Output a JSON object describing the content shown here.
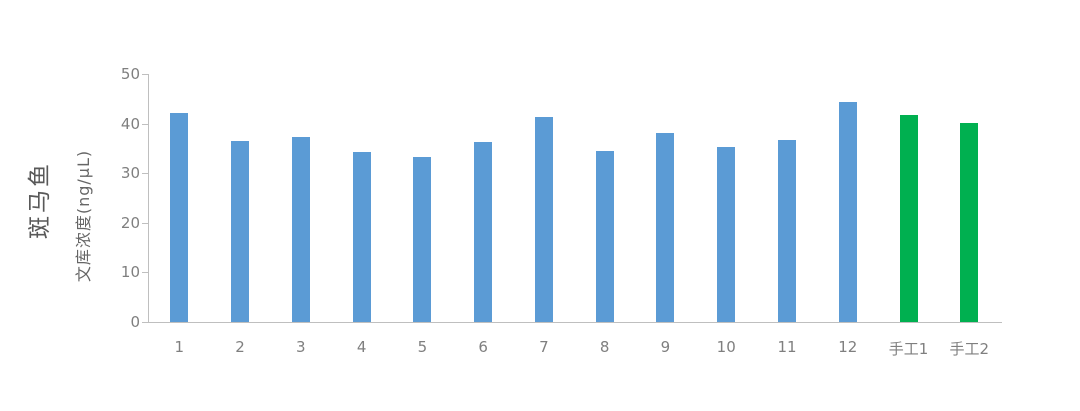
{
  "chart": {
    "row_title": "斑马鱼",
    "ylabel": "文库浓度(ng/μL)"
  },
  "chart_data": {
    "type": "bar",
    "title": "斑马鱼",
    "xlabel": "",
    "ylabel": "文库浓度(ng/μL)",
    "categories": [
      "1",
      "2",
      "3",
      "4",
      "5",
      "6",
      "7",
      "8",
      "9",
      "10",
      "11",
      "12",
      "手工1",
      "手工2"
    ],
    "values": [
      42.2,
      36.5,
      37.2,
      34.2,
      33.3,
      36.3,
      41.3,
      34.5,
      38.2,
      35.3,
      36.6,
      44.3,
      41.8,
      40.2
    ],
    "groups": [
      "sample",
      "sample",
      "sample",
      "sample",
      "sample",
      "sample",
      "sample",
      "sample",
      "sample",
      "sample",
      "sample",
      "sample",
      "manual",
      "manual"
    ],
    "group_colors": {
      "sample": "#5b9bd5",
      "manual": "#00b050"
    },
    "ylim": [
      0,
      50
    ],
    "yticks": [
      0,
      10,
      20,
      30,
      40,
      50
    ],
    "grid": false,
    "legend": null,
    "axis_color": "#bfbfbf",
    "tick_label_color": "#7f7f7f",
    "title_color": "#595959"
  }
}
